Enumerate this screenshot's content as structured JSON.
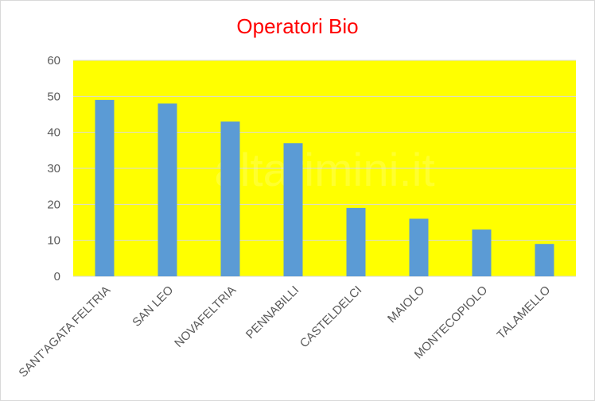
{
  "chart_data": {
    "type": "bar",
    "title": "Operatori Bio",
    "xlabel": "",
    "ylabel": "",
    "categories": [
      "SANT'AGATA FELTRIA",
      "SAN LEO",
      "NOVAFELTRIA",
      "PENNABILLI",
      "CASTELDELCI",
      "MAIOLO",
      "MONTECOPIOLO",
      "TALAMELLO"
    ],
    "values": [
      49,
      48,
      43,
      37,
      19,
      16,
      13,
      9
    ],
    "ylim": [
      0,
      60
    ],
    "yticks": [
      0,
      10,
      20,
      30,
      40,
      50,
      60
    ],
    "grid": true,
    "legend": "none",
    "colors": {
      "bar": "#5b9bd5",
      "plot_background": "#ffff00",
      "gridline": "#d9d9d9",
      "title": "#ff0000"
    }
  },
  "watermark": {
    "text": "altarimini.it"
  }
}
